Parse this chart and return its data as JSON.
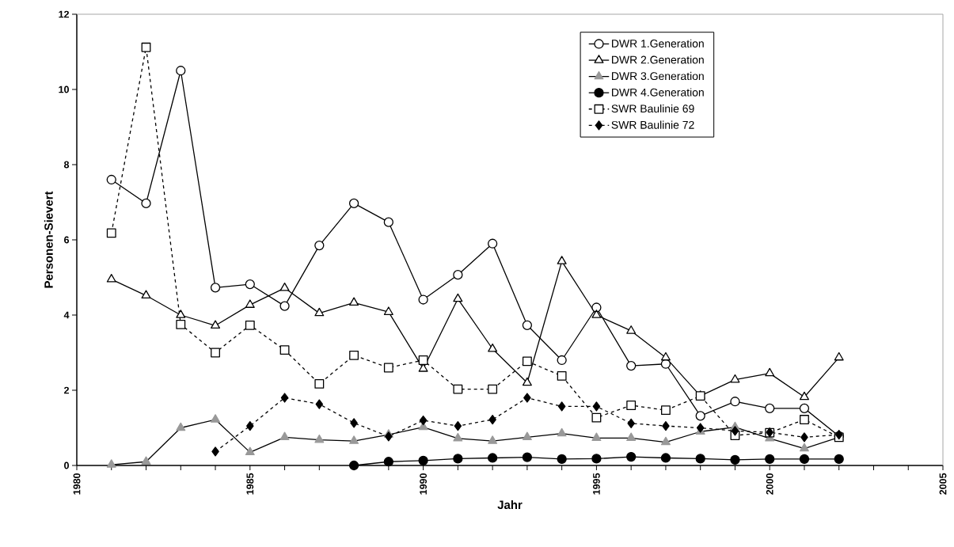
{
  "chart_data": {
    "type": "line",
    "xlabel": "Jahr",
    "ylabel": "Personen-Sievert",
    "xlim": [
      1980,
      2005
    ],
    "xticks": [
      1980,
      1985,
      1990,
      1995,
      2000,
      2005
    ],
    "ylim": [
      0,
      12
    ],
    "yticks": [
      0,
      2,
      4,
      6,
      8,
      10,
      12
    ],
    "grid": false,
    "legend": "top right",
    "series": [
      {
        "name": "DWR 1.Generation",
        "color": "#ffffff",
        "marker": "circle",
        "line_style": "solid",
        "x": [
          1981,
          1982,
          1983,
          1984,
          1985,
          1986,
          1987,
          1988,
          1989,
          1990,
          1991,
          1992,
          1993,
          1994,
          1995,
          1996,
          1997,
          1998,
          1999,
          2000,
          2001,
          2002
        ],
        "values": [
          7.6,
          6.97,
          10.5,
          4.73,
          4.82,
          4.24,
          5.85,
          6.97,
          6.47,
          4.41,
          5.07,
          5.9,
          3.73,
          2.8,
          4.2,
          2.65,
          2.7,
          1.32,
          1.7,
          1.52,
          1.52,
          0.78
        ]
      },
      {
        "name": "DWR 2.Generation",
        "color": "#ffffff",
        "marker": "triangle",
        "line_style": "solid",
        "x": [
          1981,
          1982,
          1983,
          1984,
          1985,
          1986,
          1987,
          1988,
          1989,
          1990,
          1991,
          1992,
          1993,
          1994,
          1995,
          1996,
          1997,
          1998,
          1999,
          2000,
          2001,
          2002
        ],
        "values": [
          4.95,
          4.52,
          4.0,
          3.72,
          4.27,
          4.72,
          4.05,
          4.33,
          4.08,
          2.57,
          4.43,
          3.1,
          2.2,
          5.43,
          4.0,
          3.58,
          2.87,
          1.85,
          2.28,
          2.45,
          1.82,
          2.87
        ]
      },
      {
        "name": "DWR 3.Generation",
        "color": "#999999",
        "marker": "triangle",
        "line_style": "solid",
        "x": [
          1981,
          1982,
          1983,
          1984,
          1985,
          1986,
          1987,
          1988,
          1989,
          1990,
          1991,
          1992,
          1993,
          1994,
          1995,
          1996,
          1997,
          1998,
          1999,
          2000,
          2001,
          2002
        ],
        "values": [
          0.02,
          0.1,
          1.0,
          1.22,
          0.35,
          0.75,
          0.68,
          0.65,
          0.82,
          1.02,
          0.72,
          0.65,
          0.75,
          0.85,
          0.73,
          0.73,
          0.62,
          0.9,
          1.02,
          0.72,
          0.45,
          0.75
        ]
      },
      {
        "name": "DWR 4.Generation",
        "color": "#000000",
        "marker": "circle",
        "line_style": "solid",
        "x": [
          1988,
          1989,
          1990,
          1991,
          1992,
          1993,
          1994,
          1995,
          1996,
          1997,
          1998,
          1999,
          2000,
          2001,
          2002
        ],
        "values": [
          0.0,
          0.1,
          0.13,
          0.18,
          0.2,
          0.22,
          0.17,
          0.18,
          0.23,
          0.2,
          0.18,
          0.15,
          0.17,
          0.17,
          0.17
        ]
      },
      {
        "name": "SWR Baulinie 69",
        "color": "#ffffff",
        "marker": "square",
        "line_style": "dashed",
        "x": [
          1981,
          1982,
          1983,
          1984,
          1985,
          1986,
          1987,
          1988,
          1989,
          1990,
          1991,
          1992,
          1993,
          1994,
          1995,
          1996,
          1997,
          1998,
          1999,
          2000,
          2001,
          2002
        ],
        "values": [
          6.18,
          11.12,
          3.75,
          3.0,
          3.73,
          3.07,
          2.17,
          2.93,
          2.6,
          2.8,
          2.03,
          2.03,
          2.77,
          2.38,
          1.27,
          1.6,
          1.47,
          1.85,
          0.8,
          0.87,
          1.22,
          0.75
        ]
      },
      {
        "name": "SWR Baulinie 72",
        "color": "#000000",
        "marker": "diamond",
        "line_style": "dashed",
        "x": [
          1984,
          1985,
          1986,
          1987,
          1988,
          1989,
          1990,
          1991,
          1992,
          1993,
          1994,
          1995,
          1996,
          1997,
          1998,
          1999,
          2000,
          2001,
          2002
        ],
        "values": [
          0.37,
          1.05,
          1.8,
          1.63,
          1.13,
          0.77,
          1.2,
          1.05,
          1.22,
          1.8,
          1.57,
          1.57,
          1.12,
          1.05,
          1.0,
          0.92,
          0.88,
          0.75,
          0.82
        ]
      }
    ]
  }
}
